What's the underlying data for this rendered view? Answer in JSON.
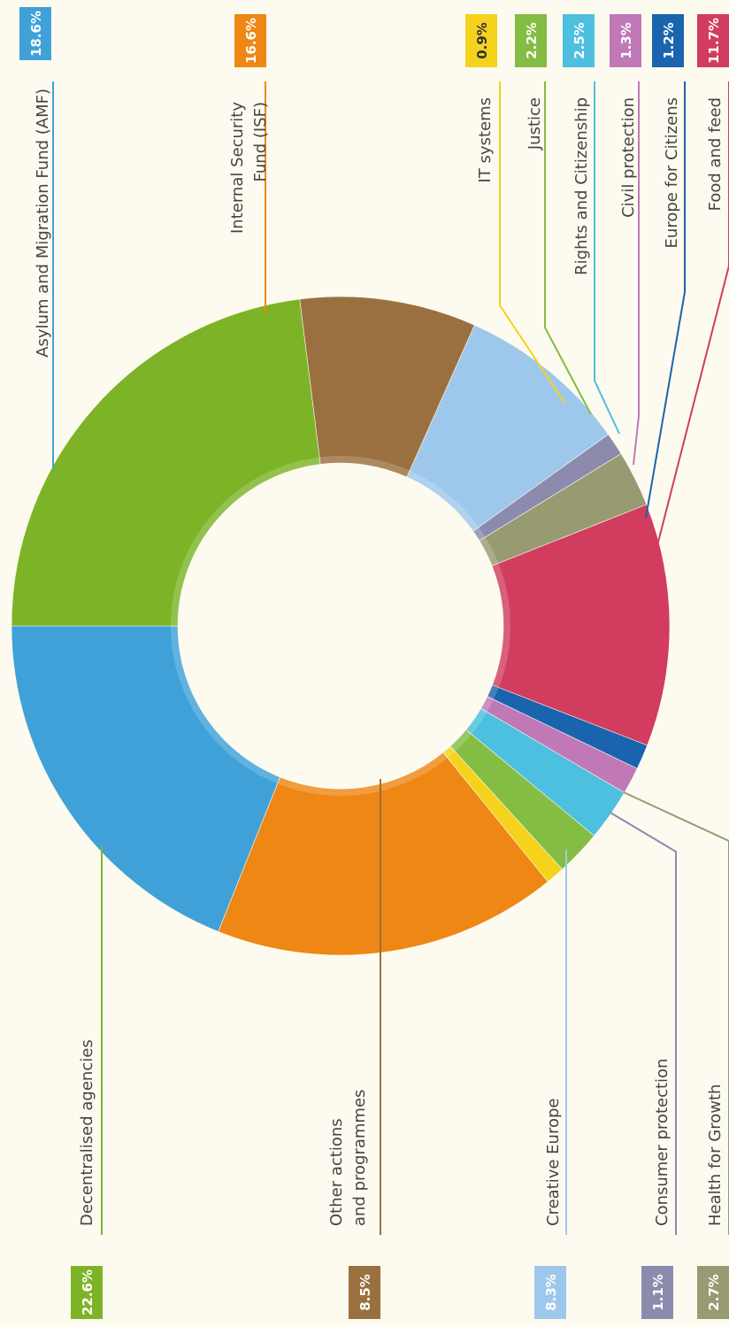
{
  "chart_data": {
    "type": "pie",
    "variant": "donut",
    "orientation": "rotated-90-clockwise",
    "series": [
      {
        "name": "Asylum and Migration Fund (AMF)",
        "value": 18.6,
        "label": "18.6%",
        "color": "#3fa1d8"
      },
      {
        "name": "Internal Security Fund (ISF)",
        "value": 16.6,
        "label": "16.6%",
        "color": "#ee8714"
      },
      {
        "name": "IT systems",
        "value": 0.9,
        "label": "0.9%",
        "color": "#f5d21c"
      },
      {
        "name": "Justice",
        "value": 2.2,
        "label": "2.2%",
        "color": "#83bd43"
      },
      {
        "name": "Rights and Citizenship",
        "value": 2.5,
        "label": "2.5%",
        "color": "#4cc0de"
      },
      {
        "name": "Civil protection",
        "value": 1.3,
        "label": "1.3%",
        "color": "#c078b7"
      },
      {
        "name": "Europe for Citizens",
        "value": 1.2,
        "label": "1.2%",
        "color": "#1a64ae"
      },
      {
        "name": "Food and feed",
        "value": 11.7,
        "label": "11.7%",
        "color": "#d13c5f"
      },
      {
        "name": "Health for Growth",
        "value": 2.7,
        "label": "2.7%",
        "color": "#989a71"
      },
      {
        "name": "Consumer protection",
        "value": 1.1,
        "label": "1.1%",
        "color": "#8c8bae"
      },
      {
        "name": "Creative Europe",
        "value": 8.3,
        "label": "8.3%",
        "color": "#9ec8eb"
      },
      {
        "name": "Other actions and programmes",
        "value": 8.5,
        "label": "8.5%",
        "color": "#9b7040"
      },
      {
        "name": "Decentralised agencies",
        "value": 22.6,
        "label": "22.6%",
        "color": "#7db427"
      }
    ]
  }
}
